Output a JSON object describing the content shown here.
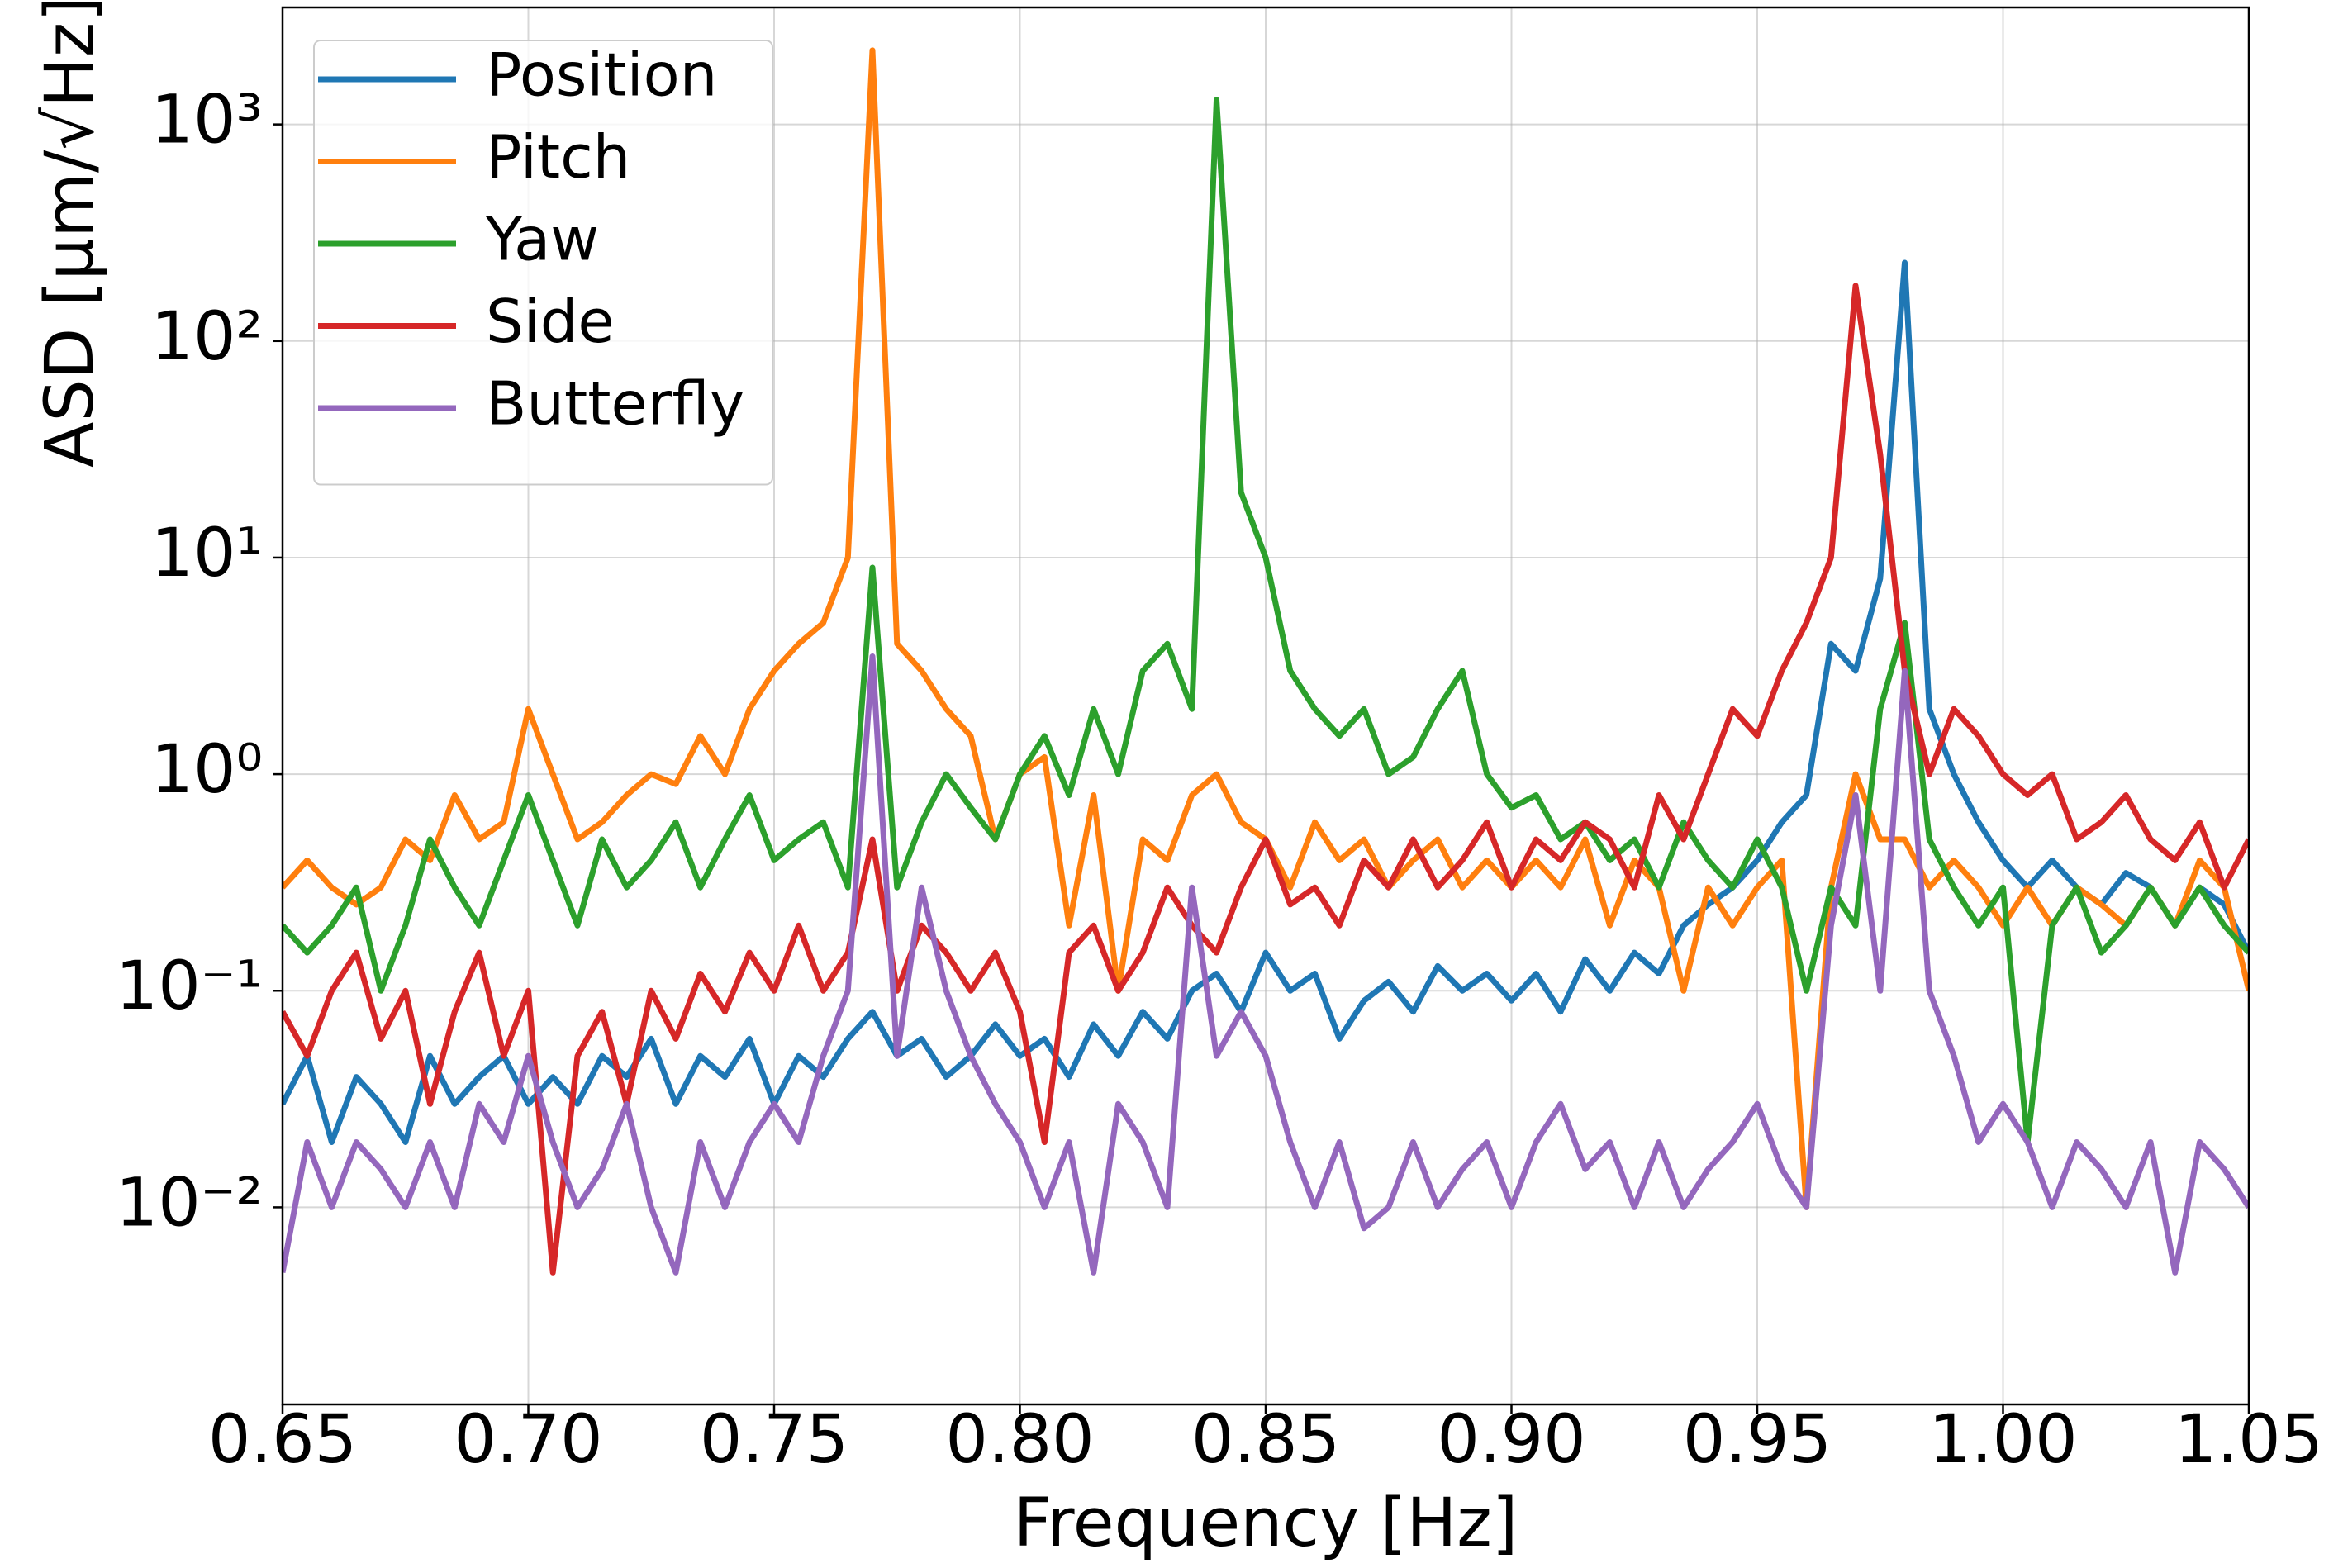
{
  "chart_data": {
    "type": "line",
    "x_label": "Frequency [Hz]",
    "y_label": "ASD [μm/√Hz]",
    "log_y": true,
    "grid": true,
    "legend": "upper left",
    "xlim": [
      0.65,
      1.05
    ],
    "xticks": [
      0.65,
      {
        "value": 0.7,
        "label": "0.70"
      },
      0.75,
      {
        "value": 0.8,
        "label": "0.80"
      },
      0.85,
      {
        "value": 0.9,
        "label": "0.90"
      },
      0.95,
      {
        "value": 1.0,
        "label": "1.00"
      },
      1.05
    ],
    "ylim": [
      0.00123,
      3470
    ],
    "yticks": [
      {
        "value": 0.01,
        "label": "10⁻²"
      },
      {
        "value": 0.1,
        "label": "10⁻¹"
      },
      {
        "value": 1,
        "label": "10⁰"
      },
      {
        "value": 10,
        "label": "10¹"
      },
      {
        "value": 100,
        "label": "10²"
      },
      {
        "value": 1000,
        "label": "10³"
      }
    ],
    "x": [
      0.65,
      0.655,
      0.66,
      0.665,
      0.67,
      0.675,
      0.68,
      0.685,
      0.69,
      0.695,
      0.7,
      0.705,
      0.71,
      0.715,
      0.72,
      0.725,
      0.73,
      0.735,
      0.74,
      0.745,
      0.75,
      0.755,
      0.76,
      0.765,
      0.77,
      0.775,
      0.78,
      0.785,
      0.79,
      0.795,
      0.8,
      0.805,
      0.81,
      0.815,
      0.82,
      0.825,
      0.83,
      0.835,
      0.84,
      0.845,
      0.85,
      0.855,
      0.86,
      0.865,
      0.87,
      0.875,
      0.88,
      0.885,
      0.89,
      0.895,
      0.9,
      0.905,
      0.91,
      0.915,
      0.92,
      0.925,
      0.93,
      0.935,
      0.94,
      0.945,
      0.95,
      0.955,
      0.96,
      0.965,
      0.97,
      0.975,
      0.98,
      0.985,
      0.99,
      0.995,
      1.0,
      1.005,
      1.01,
      1.015,
      1.02,
      1.025,
      1.03,
      1.035,
      1.04,
      1.045,
      1.05
    ],
    "series": [
      {
        "name": "Position",
        "color": "#1f77b4",
        "values": [
          0.03,
          0.05,
          0.02,
          0.04,
          0.03,
          0.02,
          0.05,
          0.03,
          0.04,
          0.05,
          0.03,
          0.04,
          0.03,
          0.05,
          0.04,
          0.06,
          0.03,
          0.05,
          0.04,
          0.06,
          0.03,
          0.05,
          0.04,
          0.06,
          0.08,
          0.05,
          0.06,
          0.04,
          0.05,
          0.07,
          0.05,
          0.06,
          0.04,
          0.07,
          0.05,
          0.08,
          0.06,
          0.1,
          0.12,
          0.08,
          0.15,
          0.1,
          0.12,
          0.06,
          0.09,
          0.11,
          0.08,
          0.13,
          0.1,
          0.12,
          0.09,
          0.12,
          0.08,
          0.14,
          0.1,
          0.15,
          0.12,
          0.2,
          0.25,
          0.3,
          0.4,
          0.6,
          0.8,
          4,
          3,
          8,
          230,
          2,
          1,
          0.6,
          0.4,
          0.3,
          0.4,
          0.3,
          0.25,
          0.35,
          0.3,
          0.2,
          0.3,
          0.25,
          0.15
        ]
      },
      {
        "name": "Pitch",
        "color": "#ff7f0e",
        "values": [
          0.3,
          0.4,
          0.3,
          0.25,
          0.3,
          0.5,
          0.4,
          0.8,
          0.5,
          0.6,
          2,
          1,
          0.5,
          0.6,
          0.8,
          1,
          0.9,
          1.5,
          1,
          2,
          3,
          4,
          5,
          10,
          2200,
          4,
          3,
          2,
          1.5,
          0.5,
          1,
          1.2,
          0.2,
          0.8,
          0.1,
          0.5,
          0.4,
          0.8,
          1,
          0.6,
          0.5,
          0.3,
          0.6,
          0.4,
          0.5,
          0.3,
          0.4,
          0.5,
          0.3,
          0.4,
          0.3,
          0.4,
          0.3,
          0.5,
          0.2,
          0.4,
          0.3,
          0.1,
          0.3,
          0.2,
          0.3,
          0.4,
          0.01,
          0.3,
          1,
          0.5,
          0.5,
          0.3,
          0.4,
          0.3,
          0.2,
          0.3,
          0.2,
          0.3,
          0.25,
          0.2,
          0.3,
          0.2,
          0.4,
          0.3,
          0.1
        ]
      },
      {
        "name": "Yaw",
        "color": "#2ca02c",
        "values": [
          0.2,
          0.15,
          0.2,
          0.3,
          0.1,
          0.2,
          0.5,
          0.3,
          0.2,
          0.4,
          0.8,
          0.4,
          0.2,
          0.5,
          0.3,
          0.4,
          0.6,
          0.3,
          0.5,
          0.8,
          0.4,
          0.5,
          0.6,
          0.3,
          9,
          0.3,
          0.6,
          1,
          0.7,
          0.5,
          1,
          1.5,
          0.8,
          2,
          1,
          3,
          4,
          2,
          1300,
          20,
          10,
          3,
          2,
          1.5,
          2,
          1,
          1.2,
          2,
          3,
          1,
          0.7,
          0.8,
          0.5,
          0.6,
          0.4,
          0.5,
          0.3,
          0.6,
          0.4,
          0.3,
          0.5,
          0.3,
          0.1,
          0.3,
          0.2,
          2,
          5,
          0.5,
          0.3,
          0.2,
          0.3,
          0.02,
          0.2,
          0.3,
          0.15,
          0.2,
          0.3,
          0.2,
          0.3,
          0.2,
          0.15
        ]
      },
      {
        "name": "Side",
        "color": "#d62728",
        "values": [
          0.08,
          0.05,
          0.1,
          0.15,
          0.06,
          0.1,
          0.03,
          0.08,
          0.15,
          0.05,
          0.1,
          0.005,
          0.05,
          0.08,
          0.03,
          0.1,
          0.06,
          0.12,
          0.08,
          0.15,
          0.1,
          0.2,
          0.1,
          0.15,
          0.5,
          0.1,
          0.2,
          0.15,
          0.1,
          0.15,
          0.08,
          0.02,
          0.15,
          0.2,
          0.1,
          0.15,
          0.3,
          0.2,
          0.15,
          0.3,
          0.5,
          0.25,
          0.3,
          0.2,
          0.4,
          0.3,
          0.5,
          0.3,
          0.4,
          0.6,
          0.3,
          0.5,
          0.4,
          0.6,
          0.5,
          0.3,
          0.8,
          0.5,
          1,
          2,
          1.5,
          3,
          5,
          10,
          180,
          30,
          3,
          1,
          2,
          1.5,
          1,
          0.8,
          1,
          0.5,
          0.6,
          0.8,
          0.5,
          0.4,
          0.6,
          0.3,
          0.5
        ]
      },
      {
        "name": "Butterfly",
        "color": "#9467bd",
        "values": [
          0.005,
          0.02,
          0.01,
          0.02,
          0.015,
          0.01,
          0.02,
          0.01,
          0.03,
          0.02,
          0.05,
          0.02,
          0.01,
          0.015,
          0.03,
          0.01,
          0.005,
          0.02,
          0.01,
          0.02,
          0.03,
          0.02,
          0.05,
          0.1,
          3.5,
          0.05,
          0.3,
          0.1,
          0.05,
          0.03,
          0.02,
          0.01,
          0.02,
          0.005,
          0.03,
          0.02,
          0.01,
          0.3,
          0.05,
          0.08,
          0.05,
          0.02,
          0.01,
          0.02,
          0.008,
          0.01,
          0.02,
          0.01,
          0.015,
          0.02,
          0.01,
          0.02,
          0.03,
          0.015,
          0.02,
          0.01,
          0.02,
          0.01,
          0.015,
          0.02,
          0.03,
          0.015,
          0.01,
          0.2,
          0.8,
          0.1,
          3,
          0.1,
          0.05,
          0.02,
          0.03,
          0.02,
          0.01,
          0.02,
          0.015,
          0.01,
          0.02,
          0.005,
          0.02,
          0.015,
          0.01
        ]
      }
    ]
  }
}
